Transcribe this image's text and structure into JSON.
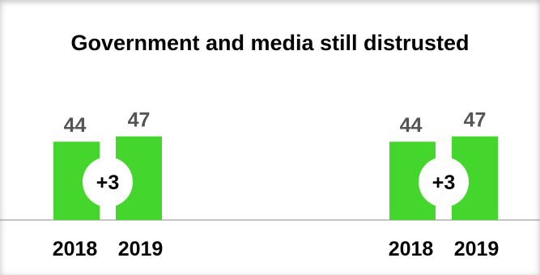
{
  "title": "Government and media still distrusted",
  "colors": {
    "bar": "#44D62C",
    "baseline": "#888888",
    "value_text": "#555555"
  },
  "chart_data": [
    {
      "type": "bar",
      "categories": [
        "2018",
        "2019"
      ],
      "values": [
        44,
        47
      ],
      "change_label": "+3",
      "ylim": [
        0,
        80
      ],
      "grid": false
    },
    {
      "type": "bar",
      "categories": [
        "2018",
        "2019"
      ],
      "values": [
        44,
        47
      ],
      "change_label": "+3",
      "ylim": [
        0,
        80
      ],
      "grid": false
    }
  ]
}
